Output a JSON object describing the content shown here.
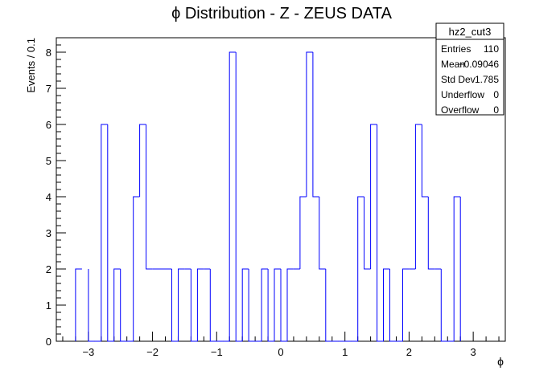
{
  "chart_data": {
    "type": "histogram",
    "title": "ϕ Distribution - Z - ZEUS DATA",
    "xlabel": "ϕ",
    "ylabel": "Events / 0.1",
    "xlim": [
      -3.5,
      3.5
    ],
    "ylim": [
      0,
      8.4
    ],
    "xticks": [
      -3,
      -2,
      -1,
      0,
      1,
      2,
      3
    ],
    "yticks": [
      0,
      1,
      2,
      3,
      4,
      5,
      6,
      7,
      8
    ],
    "grid": false,
    "line_color": "#0000ff",
    "bin_width": 0.1,
    "bins": [
      [
        -3.2,
        2
      ],
      [
        -3.0,
        0
      ],
      [
        -2.9,
        0
      ],
      [
        -2.8,
        6
      ],
      [
        -2.7,
        0
      ],
      [
        -2.6,
        2
      ],
      [
        -2.5,
        0
      ],
      [
        -2.4,
        0
      ],
      [
        -2.3,
        4
      ],
      [
        -2.2,
        6
      ],
      [
        -2.1,
        2
      ],
      [
        -2.0,
        2
      ],
      [
        -1.9,
        2
      ],
      [
        -1.8,
        2
      ],
      [
        -1.7,
        0
      ],
      [
        -1.6,
        2
      ],
      [
        -1.5,
        2
      ],
      [
        -1.4,
        0
      ],
      [
        -1.3,
        2
      ],
      [
        -1.2,
        2
      ],
      [
        -1.1,
        0
      ],
      [
        -1.0,
        0
      ],
      [
        -0.9,
        0
      ],
      [
        -0.8,
        8
      ],
      [
        -0.7,
        0
      ],
      [
        -0.6,
        2
      ],
      [
        -0.5,
        0
      ],
      [
        -0.4,
        0
      ],
      [
        -0.3,
        2
      ],
      [
        -0.2,
        0
      ],
      [
        -0.1,
        2
      ],
      [
        0.0,
        0
      ],
      [
        0.1,
        2
      ],
      [
        0.2,
        2
      ],
      [
        0.3,
        4
      ],
      [
        0.4,
        8
      ],
      [
        0.5,
        4
      ],
      [
        0.6,
        2
      ],
      [
        0.7,
        0
      ],
      [
        0.8,
        0
      ],
      [
        0.9,
        0
      ],
      [
        1.0,
        0
      ],
      [
        1.1,
        0
      ],
      [
        1.2,
        4
      ],
      [
        1.3,
        2
      ],
      [
        1.4,
        6
      ],
      [
        1.5,
        0
      ],
      [
        1.6,
        2
      ],
      [
        1.7,
        0
      ],
      [
        1.8,
        0
      ],
      [
        1.9,
        2
      ],
      [
        2.0,
        2
      ],
      [
        2.1,
        6
      ],
      [
        2.2,
        4
      ],
      [
        2.3,
        2
      ],
      [
        2.4,
        2
      ],
      [
        2.5,
        0
      ],
      [
        2.6,
        0
      ],
      [
        2.7,
        4
      ]
    ],
    "stats": {
      "name": "hz2_cut3",
      "rows": [
        {
          "label": "Entries",
          "value": "110"
        },
        {
          "label": "Mean",
          "value": "−0.09046"
        },
        {
          "label": "Std Dev",
          "value": "1.785"
        },
        {
          "label": "Underflow",
          "value": "0"
        },
        {
          "label": "Overflow",
          "value": "0"
        }
      ]
    }
  }
}
